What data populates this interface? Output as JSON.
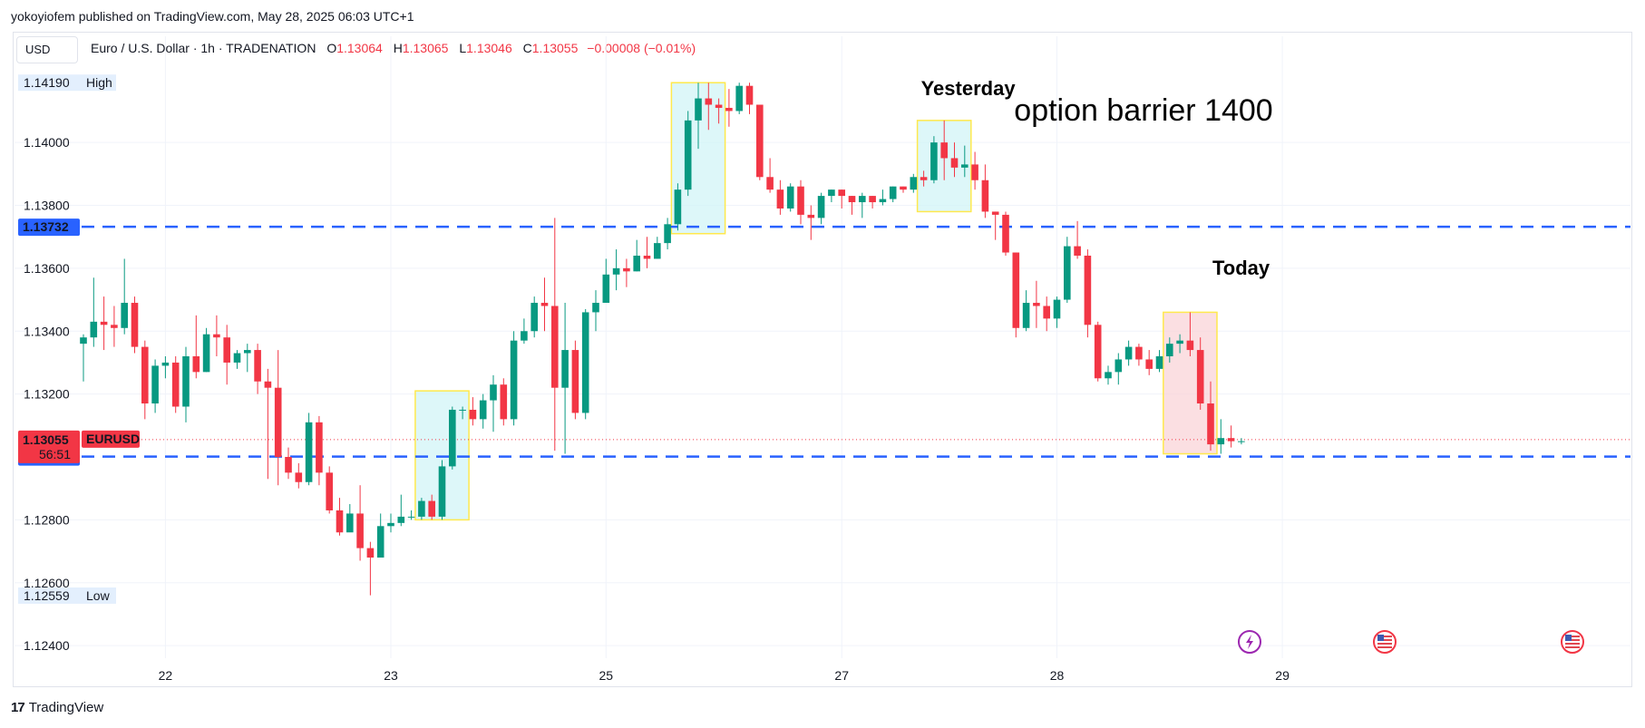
{
  "publisher": "yokoyiofem published on TradingView.com, May 28, 2025 06:03 UTC+1",
  "currency": "USD",
  "legend": {
    "symbol": "Euro / U.S. Dollar · 1h · TRADENATION",
    "o_label": "O",
    "o": "1.13064",
    "h_label": "H",
    "h": "1.13065",
    "l_label": "L",
    "l": "1.13046",
    "c_label": "C",
    "c": "1.13055",
    "change": "−0.00008 (−0.01%)"
  },
  "footer": {
    "logo_text": "TradingView"
  },
  "colors": {
    "up": "#089981",
    "down": "#f23645",
    "level": "#2962ff",
    "box_cyan": "#d2f4f7",
    "box_pink": "#fad4d8",
    "box_border": "#ffe94d"
  },
  "chart_data": {
    "type": "candlestick",
    "ylim": [
      1.1236,
      1.1428
    ],
    "y_ticks": [
      "1.12400",
      "1.12600",
      "1.12800",
      "1.13200",
      "1.13400",
      "1.13600",
      "1.13800",
      "1.14000"
    ],
    "x_ticks": [
      "22",
      "23",
      "25",
      "27",
      "28",
      "29"
    ],
    "high_marker": {
      "value": "1.14190",
      "label": "High"
    },
    "low_marker": {
      "value": "1.12559",
      "label": "Low"
    },
    "last_price": {
      "value": "1.13055",
      "symbol": "EURUSD",
      "countdown": "56:51"
    },
    "levels": [
      {
        "value": 1.13732,
        "label": "1.13732"
      },
      {
        "value": 1.13001,
        "label": "1.13001"
      }
    ],
    "annotations": [
      {
        "text": "Yesterday",
        "price": 1.1415,
        "candle": 82
      },
      {
        "text": "option barrier 1400",
        "price": 1.1407,
        "candle": 91
      },
      {
        "text": "Today",
        "price": 1.1358,
        "candle": 110
      }
    ],
    "boxes": [
      {
        "from": 33,
        "to": 37,
        "top": 1.1321,
        "bottom": 1.128,
        "fill": "cyan"
      },
      {
        "from": 58,
        "to": 62,
        "top": 1.1419,
        "bottom": 1.1371,
        "fill": "cyan"
      },
      {
        "from": 82,
        "to": 86,
        "top": 1.1407,
        "bottom": 1.1378,
        "fill": "cyan"
      },
      {
        "from": 106,
        "to": 110,
        "top": 1.1346,
        "bottom": 1.1301,
        "fill": "pink"
      }
    ],
    "candles": [
      [
        1.1336,
        1.1338,
        1.1324,
        1.1339
      ],
      [
        1.1338,
        1.1343,
        1.1335,
        1.1357
      ],
      [
        1.1343,
        1.1342,
        1.1334,
        1.1351
      ],
      [
        1.1342,
        1.1341,
        1.1335,
        1.1348
      ],
      [
        1.1341,
        1.1349,
        1.1339,
        1.1363
      ],
      [
        1.1349,
        1.1335,
        1.1333,
        1.1351
      ],
      [
        1.1335,
        1.1317,
        1.1312,
        1.1337
      ],
      [
        1.1317,
        1.1329,
        1.1314,
        1.1331
      ],
      [
        1.1329,
        1.133,
        1.1325,
        1.1332
      ],
      [
        1.133,
        1.1316,
        1.1314,
        1.1332
      ],
      [
        1.1316,
        1.1332,
        1.1311,
        1.1335
      ],
      [
        1.1332,
        1.1327,
        1.1325,
        1.1345
      ],
      [
        1.1327,
        1.1339,
        1.1327,
        1.1341
      ],
      [
        1.1339,
        1.1338,
        1.1332,
        1.1345
      ],
      [
        1.1338,
        1.133,
        1.1323,
        1.1342
      ],
      [
        1.133,
        1.1333,
        1.1328,
        1.1334
      ],
      [
        1.1333,
        1.1334,
        1.1327,
        1.1336
      ],
      [
        1.1334,
        1.1324,
        1.132,
        1.1336
      ],
      [
        1.1324,
        1.1322,
        1.1293,
        1.1328
      ],
      [
        1.1322,
        1.13,
        1.1291,
        1.1334
      ],
      [
        1.13,
        1.1295,
        1.1293,
        1.1303
      ],
      [
        1.1295,
        1.1292,
        1.129,
        1.1298
      ],
      [
        1.1292,
        1.1311,
        1.1291,
        1.1314
      ],
      [
        1.1311,
        1.1295,
        1.1291,
        1.1313
      ],
      [
        1.1295,
        1.1283,
        1.1282,
        1.1297
      ],
      [
        1.1283,
        1.1276,
        1.1275,
        1.1287
      ],
      [
        1.1276,
        1.1282,
        1.1277,
        1.1285
      ],
      [
        1.1282,
        1.1271,
        1.1267,
        1.1291
      ],
      [
        1.1271,
        1.1268,
        1.1256,
        1.1273
      ],
      [
        1.1268,
        1.1278,
        1.1268,
        1.1282
      ],
      [
        1.1278,
        1.1279,
        1.1276,
        1.1282
      ],
      [
        1.1279,
        1.1281,
        1.1278,
        1.1288
      ],
      [
        1.1281,
        1.1281,
        1.128,
        1.1283
      ],
      [
        1.1281,
        1.1286,
        1.128,
        1.1287
      ],
      [
        1.1286,
        1.1281,
        1.128,
        1.1288
      ],
      [
        1.1281,
        1.1297,
        1.128,
        1.1299
      ],
      [
        1.1297,
        1.1315,
        1.1296,
        1.1316
      ],
      [
        1.1315,
        1.1315,
        1.1312,
        1.1316
      ],
      [
        1.1315,
        1.1312,
        1.131,
        1.1319
      ],
      [
        1.1312,
        1.1318,
        1.1309,
        1.132
      ],
      [
        1.1318,
        1.1323,
        1.1308,
        1.1326
      ],
      [
        1.1323,
        1.1312,
        1.131,
        1.1325
      ],
      [
        1.1312,
        1.1337,
        1.131,
        1.134
      ],
      [
        1.1337,
        1.134,
        1.1336,
        1.1344
      ],
      [
        1.134,
        1.1349,
        1.1338,
        1.1351
      ],
      [
        1.1349,
        1.1348,
        1.134,
        1.1357
      ],
      [
        1.1348,
        1.1322,
        1.1302,
        1.1376
      ],
      [
        1.1322,
        1.1334,
        1.1301,
        1.1349
      ],
      [
        1.1334,
        1.1314,
        1.1312,
        1.1337
      ],
      [
        1.1314,
        1.1346,
        1.1312,
        1.1347
      ],
      [
        1.1346,
        1.1349,
        1.134,
        1.1353
      ],
      [
        1.1349,
        1.1358,
        1.1349,
        1.1363
      ],
      [
        1.1358,
        1.136,
        1.1353,
        1.1366
      ],
      [
        1.136,
        1.1359,
        1.1354,
        1.1363
      ],
      [
        1.1359,
        1.1364,
        1.1359,
        1.1369
      ],
      [
        1.1364,
        1.1363,
        1.136,
        1.137
      ],
      [
        1.1363,
        1.1368,
        1.1363,
        1.137
      ],
      [
        1.1368,
        1.1374,
        1.1366,
        1.1376
      ],
      [
        1.1374,
        1.1385,
        1.1372,
        1.1387
      ],
      [
        1.1385,
        1.1407,
        1.1383,
        1.141
      ],
      [
        1.1407,
        1.1414,
        1.1398,
        1.1419
      ],
      [
        1.1414,
        1.1412,
        1.1404,
        1.1419
      ],
      [
        1.1412,
        1.1411,
        1.1406,
        1.1414
      ],
      [
        1.1411,
        1.141,
        1.1405,
        1.1417
      ],
      [
        1.141,
        1.1418,
        1.1409,
        1.1419
      ],
      [
        1.1418,
        1.1412,
        1.1409,
        1.1419
      ],
      [
        1.1412,
        1.1389,
        1.1388,
        1.1412
      ],
      [
        1.1389,
        1.1385,
        1.1384,
        1.1395
      ],
      [
        1.1385,
        1.1379,
        1.1377,
        1.1388
      ],
      [
        1.1379,
        1.1386,
        1.1378,
        1.1387
      ],
      [
        1.1386,
        1.1377,
        1.1374,
        1.1388
      ],
      [
        1.1377,
        1.1376,
        1.1369,
        1.138
      ],
      [
        1.1376,
        1.1383,
        1.1374,
        1.1384
      ],
      [
        1.1383,
        1.1385,
        1.1381,
        1.1385
      ],
      [
        1.1385,
        1.1383,
        1.1379,
        1.1385
      ],
      [
        1.1383,
        1.1381,
        1.1377,
        1.1383
      ],
      [
        1.1381,
        1.1383,
        1.1376,
        1.1384
      ],
      [
        1.1383,
        1.1381,
        1.1379,
        1.1383
      ],
      [
        1.1381,
        1.1382,
        1.138,
        1.1385
      ],
      [
        1.1382,
        1.1386,
        1.1381,
        1.1386
      ],
      [
        1.1386,
        1.1385,
        1.1384,
        1.1386
      ],
      [
        1.1385,
        1.1389,
        1.1384,
        1.139
      ],
      [
        1.1389,
        1.1388,
        1.1386,
        1.1391
      ],
      [
        1.1388,
        1.14,
        1.1387,
        1.1402
      ],
      [
        1.14,
        1.1395,
        1.1388,
        1.1407
      ],
      [
        1.1395,
        1.1392,
        1.1389,
        1.14
      ],
      [
        1.1392,
        1.1393,
        1.1389,
        1.1399
      ],
      [
        1.1393,
        1.1388,
        1.1385,
        1.1397
      ],
      [
        1.1388,
        1.1378,
        1.1376,
        1.1393
      ],
      [
        1.1378,
        1.1377,
        1.1369,
        1.1378
      ],
      [
        1.1377,
        1.1365,
        1.1364,
        1.1378
      ],
      [
        1.1365,
        1.1341,
        1.1338,
        1.1365
      ],
      [
        1.1341,
        1.1349,
        1.134,
        1.1353
      ],
      [
        1.1349,
        1.1348,
        1.1341,
        1.1356
      ],
      [
        1.1348,
        1.1344,
        1.134,
        1.1351
      ],
      [
        1.1344,
        1.135,
        1.1341,
        1.1351
      ],
      [
        1.135,
        1.1367,
        1.1349,
        1.137
      ],
      [
        1.1367,
        1.1364,
        1.1363,
        1.1375
      ],
      [
        1.1364,
        1.1342,
        1.1338,
        1.1366
      ],
      [
        1.1342,
        1.1325,
        1.1324,
        1.1343
      ],
      [
        1.1325,
        1.1327,
        1.1323,
        1.1329
      ],
      [
        1.1327,
        1.1331,
        1.1323,
        1.1333
      ],
      [
        1.1331,
        1.1335,
        1.1329,
        1.1337
      ],
      [
        1.1335,
        1.1331,
        1.1329,
        1.1336
      ],
      [
        1.1331,
        1.1328,
        1.1326,
        1.1334
      ],
      [
        1.1328,
        1.1332,
        1.1327,
        1.1334
      ],
      [
        1.1332,
        1.1336,
        1.133,
        1.1338
      ],
      [
        1.1336,
        1.1337,
        1.1333,
        1.1339
      ],
      [
        1.1337,
        1.1334,
        1.1332,
        1.1346
      ],
      [
        1.1334,
        1.1317,
        1.1315,
        1.1338
      ],
      [
        1.1317,
        1.1304,
        1.1302,
        1.1324
      ],
      [
        1.1304,
        1.1306,
        1.1301,
        1.1312
      ],
      [
        1.1306,
        1.1305,
        1.1303,
        1.131
      ],
      [
        1.1305,
        1.1305,
        1.1304,
        1.1306
      ]
    ]
  }
}
